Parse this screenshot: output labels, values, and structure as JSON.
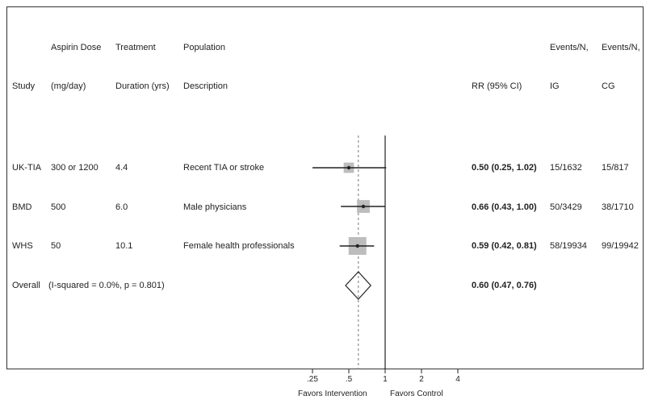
{
  "chart_data": {
    "type": "forest",
    "title": "",
    "xlabel": "",
    "x_scale": "log",
    "headers": {
      "row1": {
        "dose": "Aspirin Dose",
        "duration": "Treatment",
        "population": "Population",
        "events_ig": "Events/N,",
        "events_cg": "Events/N,"
      },
      "row2": {
        "study": "Study",
        "dose": "(mg/day)",
        "duration": "Duration (yrs)",
        "population": "Description",
        "rr": "RR (95% CI)",
        "events_ig": "IG",
        "events_cg": "CG"
      }
    },
    "studies": [
      {
        "study": "UK-TIA",
        "dose": "300 or 1200",
        "duration": "4.4",
        "population": "Recent TIA or stroke",
        "rr": 0.5,
        "lo": 0.25,
        "hi": 1.02,
        "rr_text": "0.50 (0.25, 1.02)",
        "events_ig": "15/1632",
        "events_cg": "15/817",
        "weight": 8
      },
      {
        "study": "BMD",
        "dose": "500",
        "duration": "6.0",
        "population": "Male physicians",
        "rr": 0.66,
        "lo": 0.43,
        "hi": 1.0,
        "rr_text": "0.66 (0.43, 1.00)",
        "events_ig": "50/3429",
        "events_cg": "38/1710",
        "weight": 22
      },
      {
        "study": "WHS",
        "dose": "50",
        "duration": "10.1",
        "population": "Female health professionals",
        "rr": 0.59,
        "lo": 0.42,
        "hi": 0.81,
        "rr_text": "0.59 (0.42, 0.81)",
        "events_ig": "58/19934",
        "events_cg": "99/19942",
        "weight": 70
      }
    ],
    "overall": {
      "label": "Overall",
      "heterogeneity": "(I-squared = 0.0%, p = 0.801)",
      "rr": 0.6,
      "lo": 0.47,
      "hi": 0.76,
      "rr_text": "0.60 (0.47, 0.76)"
    },
    "axis": {
      "ticks": [
        {
          "value": 0.25,
          "label": ".25"
        },
        {
          "value": 0.5,
          "label": ".5"
        },
        {
          "value": 1,
          "label": "1"
        },
        {
          "value": 2,
          "label": "2"
        },
        {
          "value": 4,
          "label": "4"
        }
      ],
      "left_label": "Favors Intervention",
      "right_label": "Favors Control"
    },
    "colors": {
      "line": "#222222",
      "box": "#bdbdbd",
      "dashed": "#777777"
    }
  }
}
